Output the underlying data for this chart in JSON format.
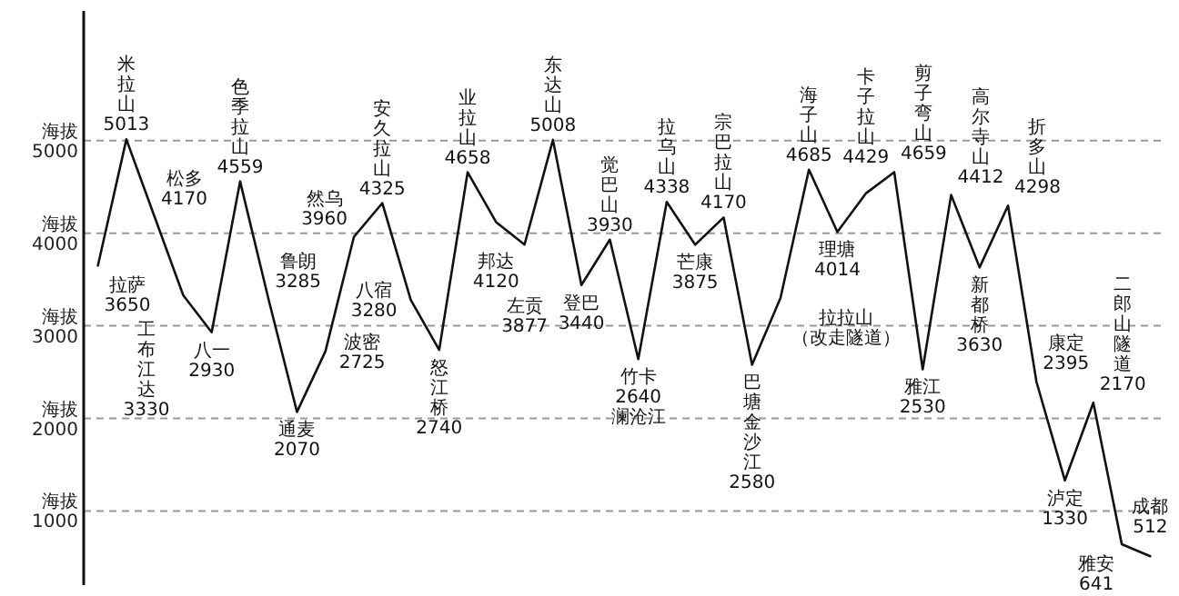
{
  "chart_data": {
    "type": "line",
    "categories": [
      null,
      null,
      null,
      null,
      null,
      null,
      null,
      null,
      null,
      null,
      null,
      null,
      null,
      null,
      null,
      null,
      null,
      null,
      null,
      null,
      null,
      null,
      null,
      null,
      null,
      null,
      null,
      null,
      null,
      null,
      null,
      null,
      null,
      null,
      null,
      null,
      null,
      null
    ],
    "series": [
      {
        "color": "#111111",
        "values": [
          3650,
          5013,
          4170,
          3330,
          2930,
          4559,
          3285,
          2070,
          2725,
          3960,
          4325,
          3280,
          2740,
          4658,
          4120,
          3877,
          5008,
          3440,
          3930,
          2640,
          4338,
          3875,
          4170,
          2580,
          3300,
          4685,
          4014,
          4429,
          4659,
          2530,
          4412,
          3630,
          4298,
          2395,
          1330,
          2170,
          641,
          512
        ],
        "value_labels": [
          "拉萨\n3650",
          "米拉山\n5013",
          "松多\n4170",
          "工布江达\n3330",
          "八一\n2930",
          "色季拉山\n4559",
          "鲁朗\n3285",
          "通麦\n2070",
          "波密\n2725",
          "然乌\n3960",
          "安久拉山\n4325",
          "八宿\n3280",
          "怒江桥\n2740",
          "业拉山\n4658",
          "邦达\n4120",
          "左贡\n3877",
          "东达山\n5008",
          "登巴\n3440",
          "觉巴山\n3930",
          "竹卡\n2640\n澜沧江",
          "拉乌山\n4338",
          "芒康\n3875",
          "宗巴拉山\n4170",
          "巴塘金沙江\n2580",
          "拉拉山（改走隧道）",
          "海子山\n4685",
          "理塘\n4014",
          "卡子拉山\n4429",
          "剪子弯山\n4659",
          "雅江\n2530",
          "高尔寺山\n4412",
          "新都桥\n3630",
          "折多山\n4298",
          "康定\n2395",
          "泸定\n1330",
          "二郎山隧道\n2170",
          "雅安\n641",
          "成都\n512"
        ]
      }
    ],
    "ylabel": "海拔",
    "ylim": [
      200,
      6400
    ],
    "yticks": [
      1000,
      2000,
      3000,
      4000,
      5000
    ],
    "grid": "y",
    "marker": "none",
    "line_style": "solid"
  }
}
